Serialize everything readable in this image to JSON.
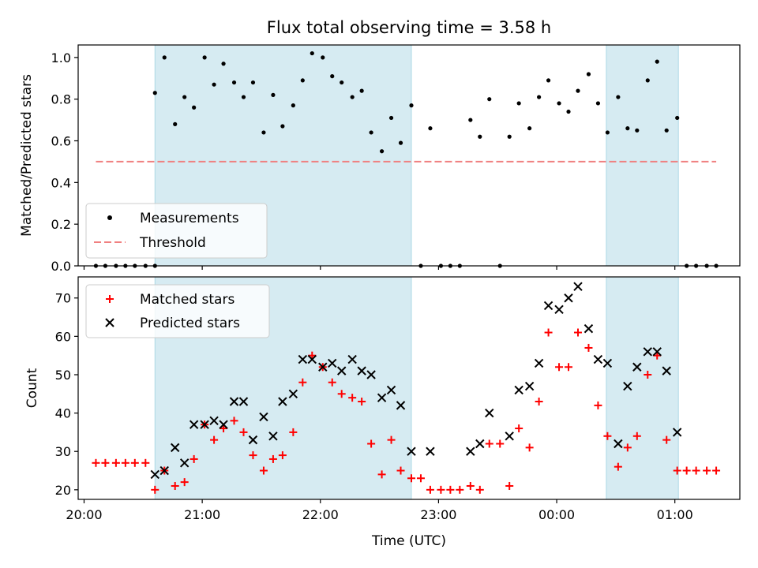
{
  "chart_data": {
    "title": "Flux total observing time = 3.58 h",
    "xlabel": "Time (UTC)",
    "x_unit": "hours (UTC clock, values >24 are after midnight)",
    "xlim": [
      19.95,
      25.55
    ],
    "x_ticks": [
      {
        "value": 20,
        "label": "20:00"
      },
      {
        "value": 21,
        "label": "21:00"
      },
      {
        "value": 22,
        "label": "22:00"
      },
      {
        "value": 23,
        "label": "23:00"
      },
      {
        "value": 24,
        "label": "00:00"
      },
      {
        "value": 25,
        "label": "01:00"
      }
    ],
    "shaded_intervals": [
      [
        20.6,
        22.77
      ],
      [
        24.42,
        25.03
      ]
    ],
    "shade_color": "#add8e6",
    "top_panel": {
      "type": "scatter",
      "ylabel": "Matched/Predicted stars",
      "ylim": [
        0.0,
        1.06
      ],
      "y_ticks": [
        0.0,
        0.2,
        0.4,
        0.6,
        0.8,
        1.0
      ],
      "y_tick_labels": [
        "0.0",
        "0.2",
        "0.4",
        "0.6",
        "0.8",
        "1.0"
      ],
      "legend": {
        "placement": "lower-left",
        "entries": [
          "Measurements",
          "Threshold"
        ]
      },
      "threshold": {
        "name": "Threshold",
        "value": 0.5,
        "x_range": [
          20.1,
          25.35
        ],
        "color": "#f08080"
      },
      "measurements": {
        "name": "Measurements",
        "color": "#000000",
        "points": [
          [
            20.1,
            0.0
          ],
          [
            20.18,
            0.0
          ],
          [
            20.27,
            0.0
          ],
          [
            20.35,
            0.0
          ],
          [
            20.43,
            0.0
          ],
          [
            20.52,
            0.0
          ],
          [
            20.6,
            0.0
          ],
          [
            20.6,
            0.83
          ],
          [
            20.68,
            1.0
          ],
          [
            20.77,
            0.68
          ],
          [
            20.85,
            0.81
          ],
          [
            20.93,
            0.76
          ],
          [
            21.02,
            1.0
          ],
          [
            21.1,
            0.87
          ],
          [
            21.18,
            0.97
          ],
          [
            21.27,
            0.88
          ],
          [
            21.35,
            0.81
          ],
          [
            21.43,
            0.88
          ],
          [
            21.52,
            0.64
          ],
          [
            21.6,
            0.82
          ],
          [
            21.68,
            0.67
          ],
          [
            21.77,
            0.77
          ],
          [
            21.85,
            0.89
          ],
          [
            21.93,
            1.02
          ],
          [
            22.02,
            1.0
          ],
          [
            22.1,
            0.91
          ],
          [
            22.18,
            0.88
          ],
          [
            22.27,
            0.81
          ],
          [
            22.35,
            0.84
          ],
          [
            22.43,
            0.64
          ],
          [
            22.52,
            0.55
          ],
          [
            22.6,
            0.71
          ],
          [
            22.68,
            0.59
          ],
          [
            22.77,
            0.77
          ],
          [
            22.85,
            0.0
          ],
          [
            22.93,
            0.66
          ],
          [
            23.02,
            0.0
          ],
          [
            23.1,
            0.0
          ],
          [
            23.18,
            0.0
          ],
          [
            23.27,
            0.7
          ],
          [
            23.35,
            0.62
          ],
          [
            23.43,
            0.8
          ],
          [
            23.52,
            0.0
          ],
          [
            23.6,
            0.62
          ],
          [
            23.68,
            0.78
          ],
          [
            23.77,
            0.66
          ],
          [
            23.85,
            0.81
          ],
          [
            23.93,
            0.89
          ],
          [
            24.02,
            0.78
          ],
          [
            24.1,
            0.74
          ],
          [
            24.18,
            0.84
          ],
          [
            24.27,
            0.92
          ],
          [
            24.35,
            0.78
          ],
          [
            24.43,
            0.64
          ],
          [
            24.52,
            0.81
          ],
          [
            24.6,
            0.66
          ],
          [
            24.68,
            0.65
          ],
          [
            24.77,
            0.89
          ],
          [
            24.85,
            0.98
          ],
          [
            24.93,
            0.65
          ],
          [
            25.02,
            0.71
          ],
          [
            25.1,
            0.0
          ],
          [
            25.18,
            0.0
          ],
          [
            25.27,
            0.0
          ],
          [
            25.35,
            0.0
          ]
        ]
      }
    },
    "bottom_panel": {
      "type": "scatter",
      "ylabel": "Count",
      "ylim": [
        17.5,
        75.5
      ],
      "y_ticks": [
        20,
        30,
        40,
        50,
        60,
        70
      ],
      "y_tick_labels": [
        "20",
        "30",
        "40",
        "50",
        "60",
        "70"
      ],
      "legend": {
        "placement": "upper-left",
        "entries": [
          "Matched stars",
          "Predicted stars"
        ]
      },
      "matched": {
        "name": "Matched stars",
        "marker": "plus",
        "color": "#ff0000",
        "points": [
          [
            20.1,
            27
          ],
          [
            20.18,
            27
          ],
          [
            20.27,
            27
          ],
          [
            20.35,
            27
          ],
          [
            20.43,
            27
          ],
          [
            20.52,
            27
          ],
          [
            20.6,
            20
          ],
          [
            20.68,
            25
          ],
          [
            20.77,
            21
          ],
          [
            20.85,
            22
          ],
          [
            20.93,
            28
          ],
          [
            21.02,
            37
          ],
          [
            21.1,
            33
          ],
          [
            21.18,
            36
          ],
          [
            21.27,
            38
          ],
          [
            21.35,
            35
          ],
          [
            21.43,
            29
          ],
          [
            21.52,
            25
          ],
          [
            21.6,
            28
          ],
          [
            21.68,
            29
          ],
          [
            21.77,
            35
          ],
          [
            21.85,
            48
          ],
          [
            21.93,
            55
          ],
          [
            22.02,
            52
          ],
          [
            22.1,
            48
          ],
          [
            22.18,
            45
          ],
          [
            22.27,
            44
          ],
          [
            22.35,
            43
          ],
          [
            22.43,
            32
          ],
          [
            22.52,
            24
          ],
          [
            22.6,
            33
          ],
          [
            22.68,
            25
          ],
          [
            22.77,
            23
          ],
          [
            22.85,
            23
          ],
          [
            22.93,
            20
          ],
          [
            23.02,
            20
          ],
          [
            23.1,
            20
          ],
          [
            23.18,
            20
          ],
          [
            23.27,
            21
          ],
          [
            23.35,
            20
          ],
          [
            23.43,
            32
          ],
          [
            23.52,
            32
          ],
          [
            23.6,
            21
          ],
          [
            23.68,
            36
          ],
          [
            23.77,
            31
          ],
          [
            23.85,
            43
          ],
          [
            23.93,
            61
          ],
          [
            24.02,
            52
          ],
          [
            24.1,
            52
          ],
          [
            24.18,
            61
          ],
          [
            24.27,
            57
          ],
          [
            24.35,
            42
          ],
          [
            24.43,
            34
          ],
          [
            24.52,
            26
          ],
          [
            24.6,
            31
          ],
          [
            24.68,
            34
          ],
          [
            24.77,
            50
          ],
          [
            24.85,
            55
          ],
          [
            24.93,
            33
          ],
          [
            25.02,
            25
          ],
          [
            25.1,
            25
          ],
          [
            25.18,
            25
          ],
          [
            25.27,
            25
          ],
          [
            25.35,
            25
          ]
        ]
      },
      "predicted": {
        "name": "Predicted stars",
        "marker": "cross",
        "color": "#000000",
        "points": [
          [
            20.6,
            24
          ],
          [
            20.68,
            25
          ],
          [
            20.77,
            31
          ],
          [
            20.85,
            27
          ],
          [
            20.93,
            37
          ],
          [
            21.02,
            37
          ],
          [
            21.1,
            38
          ],
          [
            21.18,
            37
          ],
          [
            21.27,
            43
          ],
          [
            21.35,
            43
          ],
          [
            21.43,
            33
          ],
          [
            21.52,
            39
          ],
          [
            21.6,
            34
          ],
          [
            21.68,
            43
          ],
          [
            21.77,
            45
          ],
          [
            21.85,
            54
          ],
          [
            21.93,
            54
          ],
          [
            22.02,
            52
          ],
          [
            22.1,
            53
          ],
          [
            22.18,
            51
          ],
          [
            22.27,
            54
          ],
          [
            22.35,
            51
          ],
          [
            22.43,
            50
          ],
          [
            22.52,
            44
          ],
          [
            22.6,
            46
          ],
          [
            22.68,
            42
          ],
          [
            22.77,
            30
          ],
          [
            22.93,
            30
          ],
          [
            23.27,
            30
          ],
          [
            23.35,
            32
          ],
          [
            23.43,
            40
          ],
          [
            23.6,
            34
          ],
          [
            23.68,
            46
          ],
          [
            23.77,
            47
          ],
          [
            23.85,
            53
          ],
          [
            23.93,
            68
          ],
          [
            24.02,
            67
          ],
          [
            24.1,
            70
          ],
          [
            24.18,
            73
          ],
          [
            24.27,
            62
          ],
          [
            24.35,
            54
          ],
          [
            24.43,
            53
          ],
          [
            24.52,
            32
          ],
          [
            24.6,
            47
          ],
          [
            24.68,
            52
          ],
          [
            24.77,
            56
          ],
          [
            24.85,
            56
          ],
          [
            24.93,
            51
          ],
          [
            25.02,
            35
          ]
        ]
      }
    }
  }
}
